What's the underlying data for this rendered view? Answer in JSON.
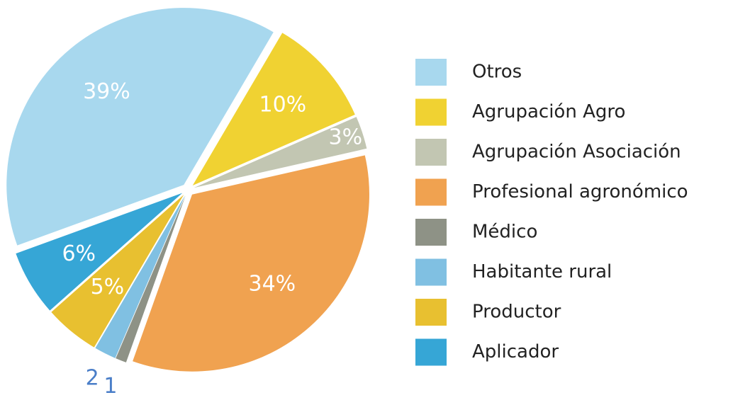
{
  "chart_data": {
    "type": "pie",
    "categories": [
      "Otros",
      "Agrupación Agro",
      "Agrupación Asociación",
      "Profesional agronómico",
      "Médico",
      "Habitante rural",
      "Productor",
      "Aplicador"
    ],
    "values": [
      39,
      10,
      3,
      34,
      1,
      2,
      5,
      6
    ],
    "value_labels": [
      "39%",
      "10%",
      "3%",
      "34%",
      "1",
      "2",
      "5%",
      "6%"
    ],
    "colors": [
      "#a8d8ee",
      "#f0d232",
      "#c2c6b2",
      "#f0a250",
      "#8e9286",
      "#80c0e2",
      "#e8c030",
      "#36a6d6"
    ],
    "legend": "right"
  }
}
